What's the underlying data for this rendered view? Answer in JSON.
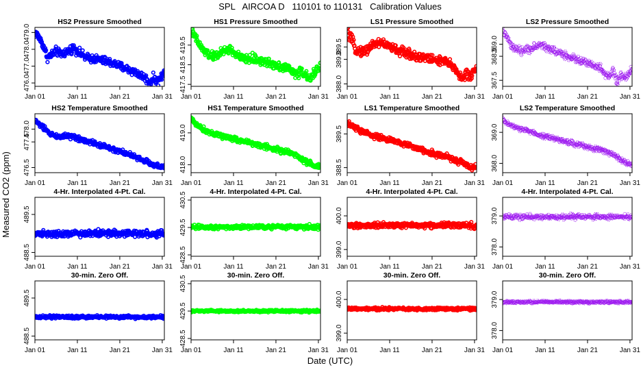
{
  "figure": {
    "title": "SPL   AIRCOA D   110101 to 110131   Calibration Values",
    "xlabel": "Date (UTC)",
    "ylabel": "Measured CO2 (ppm)"
  },
  "columns": [
    {
      "id": "HS2",
      "color": "#0000ff",
      "solid": true
    },
    {
      "id": "HS1",
      "color": "#00ff00",
      "solid": true
    },
    {
      "id": "LS1",
      "color": "#ff0000",
      "solid": true
    },
    {
      "id": "LS2",
      "color": "#a020f0",
      "solid": false
    }
  ],
  "chart_data": [
    {
      "type": "scatter",
      "row": 0,
      "col": 0,
      "title": "HS2 Pressure Smoothed",
      "xlim": [
        1,
        31.5
      ],
      "ylim": [
        475.8,
        479.3
      ],
      "yticks": [
        476.0,
        477.0,
        478.0,
        479.0
      ],
      "ytick_labels": [
        "476.0",
        "477.0",
        "478.0",
        "479.0"
      ],
      "xticks": [
        1,
        11,
        21,
        31
      ],
      "xtick_labels": [
        "Jan 01",
        "Jan 11",
        "Jan 21",
        "Jan 31"
      ],
      "trend": {
        "x": [
          1,
          2,
          3,
          4,
          6,
          7,
          9,
          10,
          13,
          16,
          19,
          21,
          24,
          25,
          27,
          28,
          29,
          30,
          31.5
        ],
        "y": [
          479.0,
          478.7,
          478.2,
          477.5,
          477.9,
          477.7,
          477.9,
          478.1,
          477.5,
          477.4,
          477.2,
          477.0,
          476.7,
          476.6,
          476.3,
          476.0,
          476.3,
          476.1,
          476.6
        ]
      },
      "noise": 0.15
    },
    {
      "type": "scatter",
      "row": 0,
      "col": 1,
      "title": "HS1 Pressure Smoothed",
      "xlim": [
        1,
        31.5
      ],
      "ylim": [
        417.4,
        420.4
      ],
      "yticks": [
        417.5,
        418.5,
        419.5
      ],
      "ytick_labels": [
        "417.5",
        "418.5",
        "419.5"
      ],
      "xticks": [
        1,
        11,
        21,
        31
      ],
      "xtick_labels": [
        "Jan 01",
        "Jan 11",
        "Jan 21",
        "Jan 31"
      ],
      "trend": {
        "x": [
          1,
          2,
          3,
          4,
          6,
          8,
          10,
          13,
          16,
          19,
          21,
          24,
          26,
          27,
          29,
          30,
          31.5
        ],
        "y": [
          420.2,
          419.9,
          419.5,
          419.2,
          418.9,
          419.1,
          419.3,
          418.8,
          418.8,
          418.6,
          418.5,
          418.3,
          418.0,
          418.2,
          417.7,
          418.1,
          418.5
        ]
      },
      "noise": 0.14
    },
    {
      "type": "scatter",
      "row": 0,
      "col": 2,
      "title": "LS1 Pressure Smoothed",
      "xlim": [
        1,
        31.5
      ],
      "ylim": [
        387.9,
        390.3
      ],
      "yticks": [
        388.0,
        389.0,
        389.5
      ],
      "ytick_labels": [
        "388.0",
        "389.0",
        "389.5"
      ],
      "xticks": [
        1,
        11,
        21,
        31
      ],
      "xtick_labels": [
        "Jan 01",
        "Jan 11",
        "Jan 21",
        "Jan 31"
      ],
      "trend": {
        "x": [
          1,
          2,
          3,
          5,
          7,
          9,
          11,
          14,
          18,
          21,
          24,
          26,
          27,
          28,
          29,
          30,
          31.5
        ],
        "y": [
          390.1,
          389.8,
          389.4,
          389.3,
          389.6,
          389.7,
          389.5,
          389.3,
          389.1,
          389.0,
          388.9,
          388.7,
          388.5,
          388.2,
          388.4,
          388.3,
          388.7
        ]
      },
      "noise": 0.12
    },
    {
      "type": "scatter",
      "row": 0,
      "col": 3,
      "title": "LS2 Pressure Smoothed",
      "xlim": [
        1,
        31.5
      ],
      "ylim": [
        367.25,
        369.7
      ],
      "yticks": [
        367.5,
        368.5,
        369.0
      ],
      "ytick_labels": [
        "367.5",
        "368.5",
        "369.0"
      ],
      "xticks": [
        1,
        11,
        21,
        31
      ],
      "xtick_labels": [
        "Jan 01",
        "Jan 11",
        "Jan 21",
        "Jan 31"
      ],
      "trend": {
        "x": [
          1,
          2,
          3,
          5,
          7,
          9,
          10,
          12,
          15,
          18,
          21,
          24,
          26,
          27,
          28,
          29,
          30,
          31.5
        ],
        "y": [
          369.55,
          369.3,
          368.9,
          368.7,
          368.8,
          368.9,
          369.0,
          368.8,
          368.6,
          368.4,
          368.2,
          368.0,
          367.6,
          367.9,
          367.4,
          367.7,
          367.6,
          368.0
        ]
      },
      "noise": 0.1
    },
    {
      "type": "scatter",
      "row": 1,
      "col": 0,
      "title": "HS2 Temperature Smoothed",
      "xlim": [
        1,
        31.5
      ],
      "ylim": [
        476.3,
        478.6
      ],
      "yticks": [
        476.5,
        477.5,
        478.0
      ],
      "ytick_labels": [
        "476.5",
        "477.5",
        "478.0"
      ],
      "xticks": [
        1,
        11,
        21,
        31
      ],
      "xtick_labels": [
        "Jan 01",
        "Jan 11",
        "Jan 21",
        "Jan 31"
      ],
      "trend": {
        "x": [
          1,
          2,
          4,
          6,
          9,
          12,
          15,
          18,
          21,
          24,
          27,
          29,
          31.5
        ],
        "y": [
          478.35,
          478.2,
          477.9,
          477.7,
          477.75,
          477.6,
          477.45,
          477.3,
          477.15,
          476.95,
          476.75,
          476.6,
          476.5
        ]
      },
      "noise": 0.06
    },
    {
      "type": "scatter",
      "row": 1,
      "col": 1,
      "title": "HS1 Temperature Smoothed",
      "xlim": [
        1,
        31.5
      ],
      "ylim": [
        417.75,
        419.6
      ],
      "yticks": [
        418.0,
        419.0
      ],
      "ytick_labels": [
        "418.0",
        "419.0"
      ],
      "xticks": [
        1,
        11,
        21,
        31
      ],
      "xtick_labels": [
        "Jan 01",
        "Jan 11",
        "Jan 21",
        "Jan 31"
      ],
      "trend": {
        "x": [
          1,
          2,
          4,
          7,
          10,
          13,
          16,
          19,
          22,
          25,
          28,
          30,
          31.5
        ],
        "y": [
          419.45,
          419.3,
          419.1,
          418.95,
          418.85,
          418.75,
          418.65,
          418.55,
          418.45,
          418.35,
          418.1,
          417.95,
          417.95
        ]
      },
      "noise": 0.05
    },
    {
      "type": "scatter",
      "row": 1,
      "col": 2,
      "title": "LS1 Temperature Smoothed",
      "xlim": [
        1,
        31.5
      ],
      "ylim": [
        388.35,
        390.1
      ],
      "yticks": [
        388.5,
        389.5
      ],
      "ytick_labels": [
        "388.5",
        "389.5"
      ],
      "xticks": [
        1,
        11,
        21,
        31
      ],
      "xtick_labels": [
        "Jan 01",
        "Jan 11",
        "Jan 21",
        "Jan 31"
      ],
      "trend": {
        "x": [
          1,
          2,
          4,
          7,
          10,
          13,
          16,
          19,
          22,
          25,
          28,
          30,
          31.5
        ],
        "y": [
          389.8,
          389.75,
          389.6,
          389.45,
          389.35,
          389.25,
          389.15,
          389.0,
          388.9,
          388.8,
          388.65,
          388.5,
          388.5
        ]
      },
      "noise": 0.05
    },
    {
      "type": "scatter",
      "row": 1,
      "col": 3,
      "title": "LS2 Temperature Smoothed",
      "xlim": [
        1,
        31.5
      ],
      "ylim": [
        367.7,
        369.6
      ],
      "yticks": [
        368.0,
        369.0
      ],
      "ytick_labels": [
        "368.0",
        "369.0"
      ],
      "xticks": [
        1,
        11,
        21,
        31
      ],
      "xtick_labels": [
        "Jan 01",
        "Jan 11",
        "Jan 21",
        "Jan 31"
      ],
      "trend": {
        "x": [
          1,
          2,
          4,
          7,
          10,
          13,
          16,
          19,
          22,
          25,
          28,
          30,
          31.5
        ],
        "y": [
          369.4,
          369.3,
          369.15,
          369.05,
          368.9,
          368.8,
          368.7,
          368.6,
          368.5,
          368.4,
          368.2,
          368.05,
          367.95
        ]
      },
      "noise": 0.05
    },
    {
      "type": "scatter",
      "row": 2,
      "col": 0,
      "title": "4-Hr. Interpolated 4-Pt. Cal.",
      "xlim": [
        1,
        31.5
      ],
      "ylim": [
        488.4,
        489.95
      ],
      "yticks": [
        488.5,
        489.5
      ],
      "ytick_labels": [
        "488.5",
        "489.5"
      ],
      "xticks": [
        1,
        11,
        21,
        31
      ],
      "xtick_labels": [
        "Jan 01",
        "Jan 11",
        "Jan 21",
        "Jan 31"
      ],
      "trend": {
        "x": [
          1,
          31.5
        ],
        "y": [
          489.0,
          489.0
        ]
      },
      "noise": 0.05
    },
    {
      "type": "scatter",
      "row": 2,
      "col": 1,
      "title": "4-Hr. Interpolated 4-Pt. Cal.",
      "xlim": [
        1,
        31.5
      ],
      "ylim": [
        428.45,
        430.6
      ],
      "yticks": [
        428.5,
        429.5,
        430.5
      ],
      "ytick_labels": [
        "428.5",
        "429.5",
        "430.5"
      ],
      "xticks": [
        1,
        11,
        21,
        31
      ],
      "xtick_labels": [
        "Jan 01",
        "Jan 11",
        "Jan 21",
        "Jan 31"
      ],
      "trend": {
        "x": [
          1,
          31.5
        ],
        "y": [
          429.52,
          429.52
        ]
      },
      "noise": 0.05
    },
    {
      "type": "scatter",
      "row": 2,
      "col": 2,
      "title": "4-Hr. Interpolated 4-Pt. Cal.",
      "xlim": [
        1,
        31.5
      ],
      "ylim": [
        398.8,
        400.55
      ],
      "yticks": [
        399.0,
        400.0
      ],
      "ytick_labels": [
        "399.0",
        "400.0"
      ],
      "xticks": [
        1,
        11,
        21,
        31
      ],
      "xtick_labels": [
        "Jan 01",
        "Jan 11",
        "Jan 21",
        "Jan 31"
      ],
      "trend": {
        "x": [
          1,
          31.5
        ],
        "y": [
          399.72,
          399.72
        ]
      },
      "noise": 0.05
    },
    {
      "type": "scatter",
      "row": 2,
      "col": 3,
      "title": "4-Hr. Interpolated 4-Pt. Cal.",
      "xlim": [
        1,
        31.5
      ],
      "ylim": [
        377.7,
        379.6
      ],
      "yticks": [
        378.0,
        379.0
      ],
      "ytick_labels": [
        "378.0",
        "379.0"
      ],
      "xticks": [
        1,
        11,
        21,
        31
      ],
      "xtick_labels": [
        "Jan 01",
        "Jan 11",
        "Jan 21",
        "Jan 31"
      ],
      "trend": {
        "x": [
          1,
          31.5
        ],
        "y": [
          378.97,
          378.97
        ]
      },
      "noise": 0.05
    },
    {
      "type": "scatter",
      "row": 3,
      "col": 0,
      "title": "30-min. Zero Off.",
      "xlim": [
        1,
        31.5
      ],
      "ylim": [
        488.4,
        489.95
      ],
      "yticks": [
        488.5,
        489.5
      ],
      "ytick_labels": [
        "488.5",
        "489.5"
      ],
      "xticks": [
        1,
        11,
        21,
        31
      ],
      "xtick_labels": [
        "Jan 01",
        "Jan 11",
        "Jan 21",
        "Jan 31"
      ],
      "trend": {
        "x": [
          1,
          31.5
        ],
        "y": [
          489.0,
          489.0
        ]
      },
      "noise": 0.025
    },
    {
      "type": "scatter",
      "row": 3,
      "col": 1,
      "title": "30-min. Zero Off.",
      "xlim": [
        1,
        31.5
      ],
      "ylim": [
        428.45,
        430.6
      ],
      "yticks": [
        428.5,
        429.5,
        430.5
      ],
      "ytick_labels": [
        "428.5",
        "429.5",
        "430.5"
      ],
      "xticks": [
        1,
        11,
        21,
        31
      ],
      "xtick_labels": [
        "Jan 01",
        "Jan 11",
        "Jan 21",
        "Jan 31"
      ],
      "trend": {
        "x": [
          1,
          31.5
        ],
        "y": [
          429.5,
          429.5
        ]
      },
      "noise": 0.025
    },
    {
      "type": "scatter",
      "row": 3,
      "col": 2,
      "title": "30-min. Zero Off.",
      "xlim": [
        1,
        31.5
      ],
      "ylim": [
        398.8,
        400.55
      ],
      "yticks": [
        399.0,
        400.0
      ],
      "ytick_labels": [
        "399.0",
        "400.0"
      ],
      "xticks": [
        1,
        11,
        21,
        31
      ],
      "xtick_labels": [
        "Jan 01",
        "Jan 11",
        "Jan 21",
        "Jan 31"
      ],
      "trend": {
        "x": [
          1,
          31.5
        ],
        "y": [
          399.72,
          399.72
        ]
      },
      "noise": 0.025
    },
    {
      "type": "scatter",
      "row": 3,
      "col": 3,
      "title": "30-min. Zero Off.",
      "xlim": [
        1,
        31.5
      ],
      "ylim": [
        377.7,
        379.6
      ],
      "yticks": [
        378.0,
        379.0
      ],
      "ytick_labels": [
        "378.0",
        "379.0"
      ],
      "xticks": [
        1,
        11,
        21,
        31
      ],
      "xtick_labels": [
        "Jan 01",
        "Jan 11",
        "Jan 21",
        "Jan 31"
      ],
      "trend": {
        "x": [
          1,
          31.5
        ],
        "y": [
          378.92,
          378.92
        ]
      },
      "noise": 0.025
    }
  ]
}
